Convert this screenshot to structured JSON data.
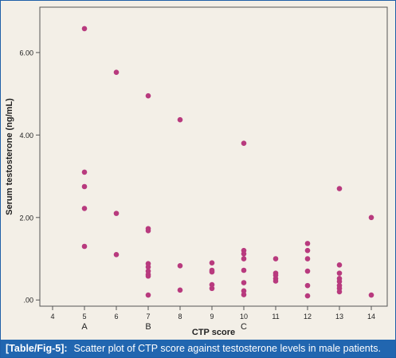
{
  "caption": {
    "tag": "[Table/Fig-5]:",
    "text": "Scatter plot of CTP score against testosterone levels in male patients."
  },
  "colors": {
    "points": "#b83a7e",
    "background": "#f3efe7",
    "caption_bar": "#2166b0"
  },
  "chart_data": {
    "type": "scatter",
    "title": "",
    "xlabel": "CTP score",
    "ylabel": "Serum testosterone (ng/mL)",
    "xlim": [
      3.6,
      14.5
    ],
    "ylim": [
      -0.15,
      7.1
    ],
    "xticks": [
      4,
      5,
      6,
      7,
      8,
      9,
      10,
      11,
      12,
      13,
      14
    ],
    "yticks": [
      {
        "value": 0,
        "label": ".00"
      },
      {
        "value": 2,
        "label": "2.00"
      },
      {
        "value": 4,
        "label": "4.00"
      },
      {
        "value": 6,
        "label": "6.00"
      }
    ],
    "class_labels": [
      {
        "x": 5,
        "label": "A"
      },
      {
        "x": 7,
        "label": "B"
      },
      {
        "x": 10,
        "label": "C"
      }
    ],
    "grid": false,
    "points": [
      {
        "x": 5,
        "y": 6.58
      },
      {
        "x": 5,
        "y": 3.1
      },
      {
        "x": 5,
        "y": 2.75
      },
      {
        "x": 5,
        "y": 2.22
      },
      {
        "x": 5,
        "y": 1.3
      },
      {
        "x": 6,
        "y": 5.52
      },
      {
        "x": 6,
        "y": 2.1
      },
      {
        "x": 6,
        "y": 1.1
      },
      {
        "x": 7,
        "y": 4.95
      },
      {
        "x": 7,
        "y": 1.73
      },
      {
        "x": 7,
        "y": 1.68
      },
      {
        "x": 7,
        "y": 0.88
      },
      {
        "x": 7,
        "y": 0.8
      },
      {
        "x": 7,
        "y": 0.7
      },
      {
        "x": 7,
        "y": 0.62
      },
      {
        "x": 7,
        "y": 0.58
      },
      {
        "x": 7,
        "y": 0.12
      },
      {
        "x": 8,
        "y": 4.37
      },
      {
        "x": 8,
        "y": 0.83
      },
      {
        "x": 8,
        "y": 0.24
      },
      {
        "x": 9,
        "y": 0.9
      },
      {
        "x": 9,
        "y": 0.72
      },
      {
        "x": 9,
        "y": 0.68
      },
      {
        "x": 9,
        "y": 0.37
      },
      {
        "x": 9,
        "y": 0.28
      },
      {
        "x": 10,
        "y": 3.8
      },
      {
        "x": 10,
        "y": 1.2
      },
      {
        "x": 10,
        "y": 1.12
      },
      {
        "x": 10,
        "y": 1.0
      },
      {
        "x": 10,
        "y": 0.72
      },
      {
        "x": 10,
        "y": 0.42
      },
      {
        "x": 10,
        "y": 0.22
      },
      {
        "x": 10,
        "y": 0.13
      },
      {
        "x": 11,
        "y": 1.0
      },
      {
        "x": 11,
        "y": 0.65
      },
      {
        "x": 11,
        "y": 0.6
      },
      {
        "x": 11,
        "y": 0.52
      },
      {
        "x": 11,
        "y": 0.46
      },
      {
        "x": 12,
        "y": 1.37
      },
      {
        "x": 12,
        "y": 1.2
      },
      {
        "x": 12,
        "y": 1.0
      },
      {
        "x": 12,
        "y": 0.7
      },
      {
        "x": 12,
        "y": 0.35
      },
      {
        "x": 12,
        "y": 0.1
      },
      {
        "x": 13,
        "y": 2.7
      },
      {
        "x": 13,
        "y": 0.85
      },
      {
        "x": 13,
        "y": 0.65
      },
      {
        "x": 13,
        "y": 0.52
      },
      {
        "x": 13,
        "y": 0.45
      },
      {
        "x": 13,
        "y": 0.35
      },
      {
        "x": 13,
        "y": 0.28
      },
      {
        "x": 13,
        "y": 0.2
      },
      {
        "x": 14,
        "y": 2.0
      },
      {
        "x": 14,
        "y": 0.12
      }
    ]
  }
}
